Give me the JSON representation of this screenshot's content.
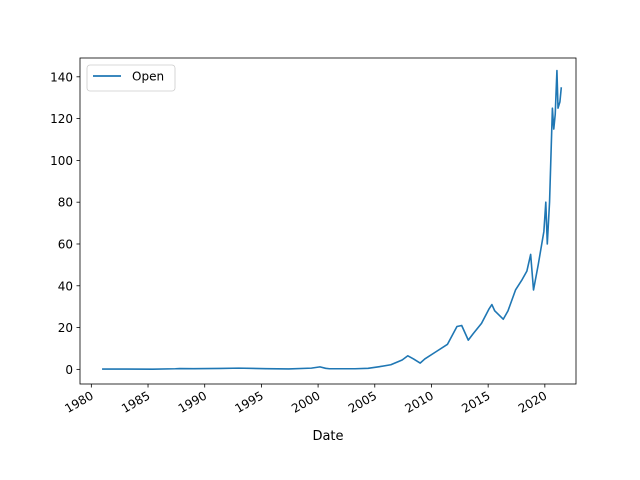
{
  "chart_data": {
    "type": "line",
    "title": "",
    "xlabel": "Date",
    "ylabel": "",
    "x_type": "date",
    "xlim": [
      "1979-01-01",
      "2022-10-01"
    ],
    "ylim": [
      -7,
      149
    ],
    "x_ticks": [
      "1980",
      "1985",
      "1990",
      "1995",
      "2000",
      "2005",
      "2010",
      "2015",
      "2020"
    ],
    "y_ticks": [
      0,
      20,
      40,
      60,
      80,
      100,
      120,
      140
    ],
    "grid": false,
    "legend": {
      "position": "top-left",
      "entries": [
        "Open"
      ]
    },
    "colors": {
      "series": "#1f77b4",
      "axes": "#000000",
      "background": "#ffffff"
    },
    "series": [
      {
        "name": "Open",
        "x": [
          "1980-12-12",
          "1983-01-01",
          "1985-06-01",
          "1987-06-01",
          "1987-10-15",
          "1989-01-01",
          "1991-06-01",
          "1993-01-01",
          "1995-06-01",
          "1997-06-01",
          "1999-06-01",
          "2000-03-01",
          "2000-09-01",
          "2001-01-01",
          "2003-04-01",
          "2004-06-01",
          "2005-06-01",
          "2006-06-01",
          "2007-06-01",
          "2007-12-01",
          "2008-06-01",
          "2009-01-01",
          "2009-06-01",
          "2010-06-01",
          "2011-06-01",
          "2012-04-01",
          "2012-09-01",
          "2013-04-01",
          "2013-09-01",
          "2014-06-01",
          "2015-02-01",
          "2015-05-01",
          "2015-08-01",
          "2016-05-01",
          "2016-10-01",
          "2017-06-01",
          "2018-01-01",
          "2018-06-01",
          "2018-10-01",
          "2019-01-01",
          "2019-06-01",
          "2019-12-01",
          "2020-02-01",
          "2020-03-20",
          "2020-06-01",
          "2020-09-01",
          "2020-10-15",
          "2020-12-01",
          "2021-01-25",
          "2021-03-01",
          "2021-05-01",
          "2021-06-15"
        ],
        "values": [
          0.13,
          0.15,
          0.1,
          0.3,
          0.4,
          0.35,
          0.45,
          0.6,
          0.35,
          0.2,
          0.6,
          1.2,
          0.5,
          0.3,
          0.3,
          0.5,
          1.3,
          2.2,
          4.5,
          6.5,
          5.0,
          3.0,
          5.0,
          8.5,
          12.0,
          20.5,
          21.0,
          14.0,
          17.0,
          22.0,
          29.0,
          31.0,
          28.0,
          24.0,
          28.0,
          38.0,
          43.0,
          47.0,
          55.0,
          38.0,
          50.0,
          66.0,
          80.0,
          60.0,
          80.0,
          125.0,
          115.0,
          122.0,
          143.0,
          125.0,
          128.0,
          135.0
        ]
      }
    ]
  }
}
